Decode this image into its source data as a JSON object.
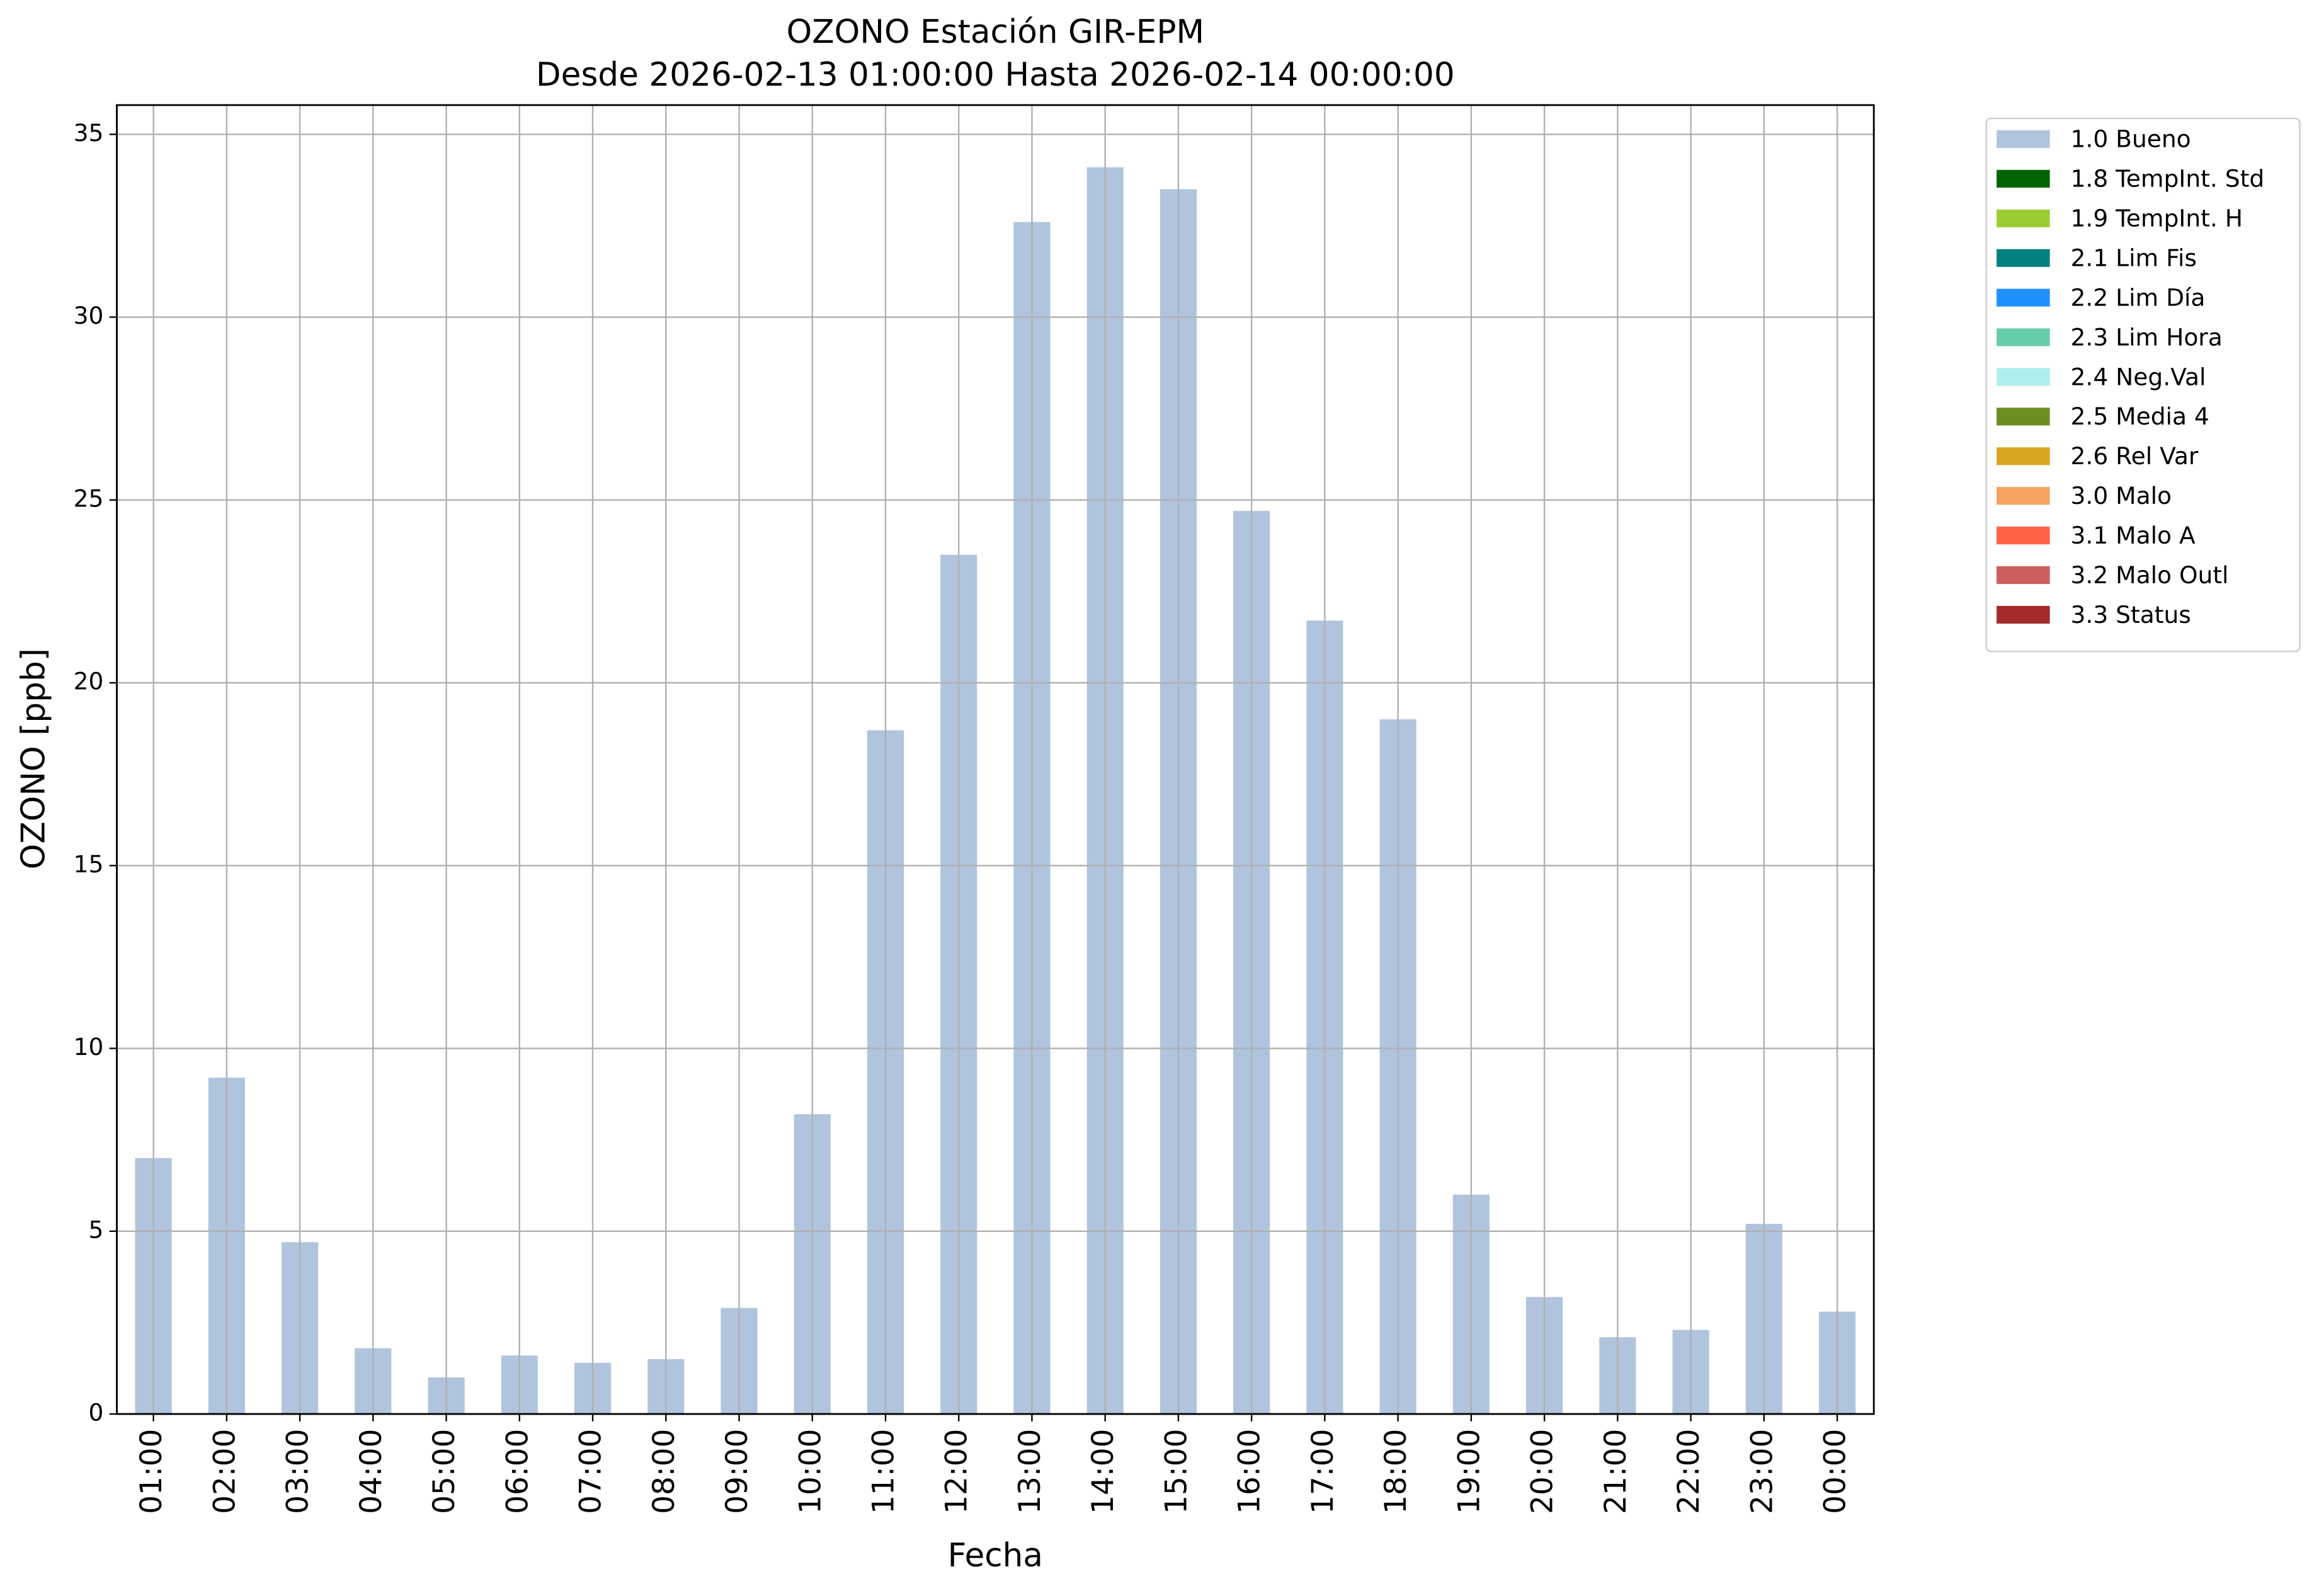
{
  "chart_data": {
    "type": "bar",
    "stacked": true,
    "title": "OZONO Estación GIR-EPM",
    "subtitle": "Desde 2026-02-13 01:00:00 Hasta 2026-02-14 00:00:00",
    "xlabel": "Fecha",
    "ylabel": "OZONO [ppb]",
    "categories": [
      "01:00",
      "02:00",
      "03:00",
      "04:00",
      "05:00",
      "06:00",
      "07:00",
      "08:00",
      "09:00",
      "10:00",
      "11:00",
      "12:00",
      "13:00",
      "14:00",
      "15:00",
      "16:00",
      "17:00",
      "18:00",
      "19:00",
      "20:00",
      "21:00",
      "22:00",
      "23:00",
      "00:00"
    ],
    "series": [
      {
        "name": "1.0 Bueno",
        "color": "#b0c4de",
        "values": [
          7.0,
          9.2,
          4.7,
          1.8,
          1.0,
          1.6,
          1.4,
          1.5,
          2.9,
          8.2,
          18.7,
          23.5,
          32.6,
          34.1,
          33.5,
          24.7,
          21.7,
          19.0,
          6.0,
          3.2,
          2.1,
          2.3,
          5.2,
          2.8
        ]
      },
      {
        "name": "1.8 TempInt. Std",
        "color": "#006400"
      },
      {
        "name": "1.9 TempInt. H",
        "color": "#9acd32"
      },
      {
        "name": "2.1 Lim Fis",
        "color": "#008080"
      },
      {
        "name": "2.2 Lim Día",
        "color": "#1e90ff"
      },
      {
        "name": "2.3 Lim Hora",
        "color": "#66cdaa"
      },
      {
        "name": "2.4 Neg.Val",
        "color": "#afeeee"
      },
      {
        "name": "2.5 Media 4",
        "color": "#6b8e23"
      },
      {
        "name": "2.6 Rel Var",
        "color": "#daa520"
      },
      {
        "name": "3.0 Malo",
        "color": "#f4a460"
      },
      {
        "name": "3.1 Malo A",
        "color": "#ff6347"
      },
      {
        "name": "3.2 Malo Outl",
        "color": "#cd5c5c"
      },
      {
        "name": "3.3 Status",
        "color": "#a52a2a"
      }
    ],
    "ylim": [
      0,
      35.8
    ],
    "yticks": [
      0,
      5,
      10,
      15,
      20,
      25,
      30,
      35
    ],
    "grid": true,
    "legend": "outside upper right"
  }
}
